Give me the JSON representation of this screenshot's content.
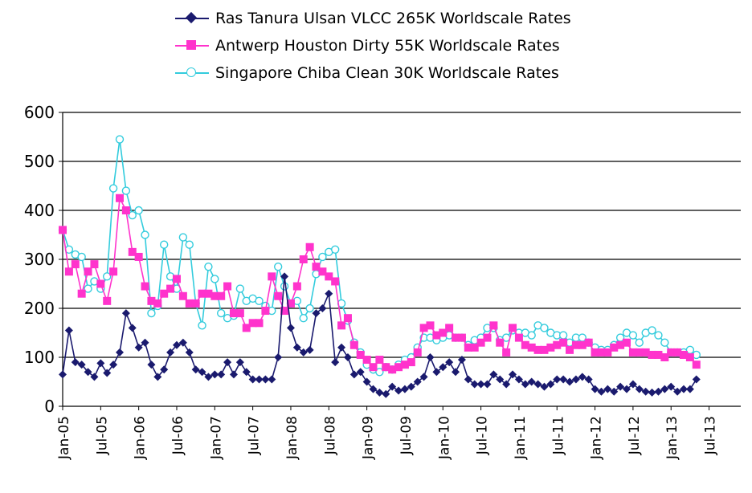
{
  "chart_data": {
    "type": "line",
    "title": "",
    "xlabel": "",
    "ylabel": "",
    "ylim": [
      0,
      600
    ],
    "yticks": [
      0,
      100,
      200,
      300,
      400,
      500,
      600
    ],
    "grid": true,
    "legend_position": "top",
    "x_tick_labels": [
      "Jan-05",
      "Jul-05",
      "Jan-06",
      "Jul-06",
      "Jan-07",
      "Jul-07",
      "Jan-08",
      "Jul-08",
      "Jan-09",
      "Jul-09",
      "Jan-10",
      "Jul-10",
      "Jan-11",
      "Jul-11",
      "Jan-12",
      "Jul-12",
      "Jan-13",
      "Jul-13"
    ],
    "x_start": "Jan-05",
    "x_end": "Dec-13",
    "colors": {
      "vlcc": "#1a1a6e",
      "dirty": "#ff33cc",
      "clean": "#33ccdd"
    },
    "series": [
      {
        "name": "Ras Tanura Ulsan VLCC 265K Worldscale Rates",
        "marker": "diamond",
        "values": [
          65,
          155,
          90,
          85,
          70,
          60,
          88,
          68,
          85,
          110,
          190,
          160,
          120,
          130,
          85,
          60,
          75,
          110,
          125,
          130,
          110,
          75,
          70,
          60,
          65,
          65,
          90,
          65,
          90,
          70,
          55,
          55,
          55,
          55,
          100,
          265,
          160,
          120,
          110,
          115,
          190,
          200,
          230,
          90,
          120,
          100,
          65,
          70,
          50,
          35,
          28,
          25,
          40,
          32,
          35,
          40,
          50,
          60,
          100,
          70,
          80,
          90,
          70,
          95,
          55,
          45,
          45,
          45,
          65,
          55,
          45,
          65,
          55,
          45,
          50,
          45,
          40,
          45,
          55,
          55,
          50,
          55,
          60,
          55,
          35,
          30,
          35,
          30,
          40,
          35,
          45,
          35,
          30,
          28,
          30,
          35,
          40,
          30,
          35,
          35,
          55
        ]
      },
      {
        "name": "Antwerp Houston Dirty 55K Worldscale Rates",
        "marker": "square",
        "values": [
          360,
          275,
          290,
          230,
          275,
          290,
          250,
          215,
          275,
          425,
          400,
          315,
          305,
          245,
          215,
          210,
          230,
          240,
          260,
          225,
          210,
          210,
          230,
          230,
          225,
          225,
          245,
          190,
          190,
          160,
          170,
          170,
          195,
          265,
          225,
          195,
          210,
          245,
          300,
          325,
          285,
          275,
          265,
          255,
          165,
          180,
          125,
          105,
          95,
          80,
          95,
          80,
          75,
          80,
          85,
          90,
          110,
          160,
          165,
          145,
          150,
          160,
          140,
          140,
          120,
          120,
          130,
          140,
          165,
          130,
          110,
          160,
          140,
          125,
          120,
          115,
          115,
          120,
          125,
          130,
          115,
          125,
          125,
          130,
          110,
          110,
          110,
          120,
          125,
          130,
          110,
          110,
          110,
          105,
          105,
          100,
          110,
          110,
          105,
          100,
          85
        ]
      },
      {
        "name": "Singapore Chiba Clean 30K Worldscale Rates",
        "marker": "circle",
        "values": [
          360,
          320,
          310,
          305,
          240,
          255,
          240,
          265,
          445,
          545,
          440,
          390,
          400,
          350,
          190,
          205,
          330,
          265,
          240,
          345,
          330,
          210,
          165,
          285,
          260,
          190,
          180,
          185,
          240,
          215,
          220,
          215,
          205,
          195,
          285,
          245,
          210,
          215,
          180,
          200,
          270,
          305,
          315,
          320,
          210,
          175,
          130,
          110,
          85,
          75,
          70,
          80,
          75,
          85,
          95,
          100,
          120,
          140,
          140,
          135,
          140,
          145,
          140,
          140,
          125,
          135,
          140,
          160,
          160,
          135,
          140,
          155,
          150,
          150,
          145,
          165,
          160,
          150,
          145,
          145,
          130,
          140,
          140,
          130,
          120,
          115,
          115,
          125,
          140,
          150,
          145,
          130,
          150,
          155,
          145,
          130,
          110,
          110,
          110,
          115,
          105
        ]
      }
    ]
  }
}
